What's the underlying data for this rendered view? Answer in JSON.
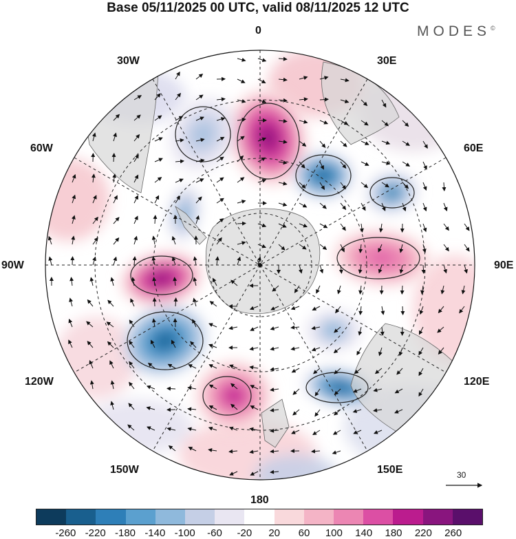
{
  "title": "Base 05/11/2025 00 UTC, valid 08/11/2025 12 UTC",
  "brand": "MODES",
  "brand_mark": "©",
  "map": {
    "projection": "south-polar-stereographic",
    "longitude_labels": [
      {
        "id": "n",
        "text": "0"
      },
      {
        "id": "e30",
        "text": "30E"
      },
      {
        "id": "e60",
        "text": "60E"
      },
      {
        "id": "e90",
        "text": "90E"
      },
      {
        "id": "e120",
        "text": "120E"
      },
      {
        "id": "e150",
        "text": "150E"
      },
      {
        "id": "s",
        "text": "180"
      },
      {
        "id": "w150",
        "text": "150W"
      },
      {
        "id": "w120",
        "text": "120W"
      },
      {
        "id": "w90",
        "text": "90W"
      },
      {
        "id": "w60",
        "text": "60W"
      },
      {
        "id": "w30",
        "text": "30W"
      }
    ],
    "reference_vector_label": "30",
    "anomaly_blobs": [
      {
        "name": "positive-anomaly-south-atlantic",
        "value": 230
      },
      {
        "name": "negative-anomaly-west-atlantic",
        "value": -120
      },
      {
        "name": "negative-anomaly-drake",
        "value": -140
      },
      {
        "name": "negative-anomaly-south-africa",
        "value": -230
      },
      {
        "name": "negative-anomaly-indian-ocean",
        "value": -220
      },
      {
        "name": "positive-anomaly-east-indian",
        "value": 170
      },
      {
        "name": "positive-anomaly-pacific-east",
        "value": 230
      },
      {
        "name": "negative-anomaly-pacific",
        "value": -250
      },
      {
        "name": "positive-anomaly-ross-sea",
        "value": 200
      },
      {
        "name": "negative-anomaly-tasman",
        "value": -130
      },
      {
        "name": "negative-anomaly-australia-south",
        "value": -230
      }
    ]
  },
  "colorbar": {
    "colors": [
      "#0d3b5c",
      "#195f8e",
      "#2e7fb8",
      "#5ba0cf",
      "#8fb9dc",
      "#c5cfe6",
      "#e9e6f2",
      "#ffffff",
      "#f9d9dc",
      "#f4b4c6",
      "#ec86b3",
      "#dc4fa4",
      "#bb1c8e",
      "#89157e",
      "#5a0f6b"
    ],
    "ticks": [
      "-260",
      "-220",
      "-180",
      "-140",
      "-100",
      "-60",
      "-20",
      "20",
      "60",
      "100",
      "140",
      "180",
      "220",
      "260"
    ]
  }
}
